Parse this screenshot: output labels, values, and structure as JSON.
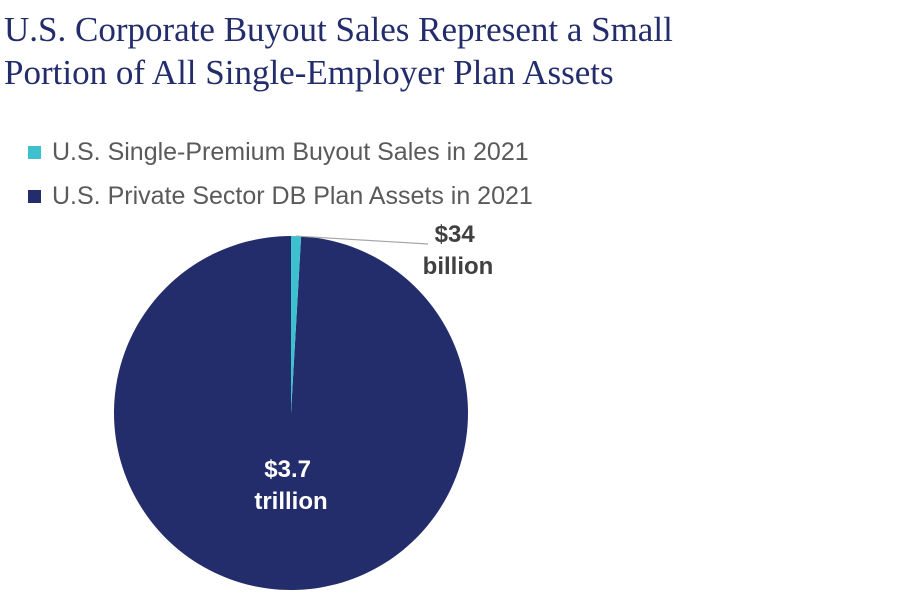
{
  "chart_data": {
    "type": "pie",
    "title_lines": [
      "U.S. Corporate Buyout Sales Represent a Small",
      "Portion of All Single-Employer Plan Assets"
    ],
    "series": [
      {
        "name": "U.S. Single-Premium Buyout Sales in 2021",
        "value": 34,
        "unit": "billion USD",
        "label_lines": [
          "$34",
          "billion"
        ],
        "color": "#3ec1cf",
        "label_color": "#404040"
      },
      {
        "name": "U.S. Private Sector DB Plan Assets in 2021",
        "value": 3700,
        "unit": "billion USD",
        "label_lines": [
          "$3.7",
          "trillion"
        ],
        "color": "#232d6b",
        "label_color": "#ffffff"
      }
    ],
    "legend_placement": "top-left",
    "label_line_color": "#a6a6a6"
  }
}
